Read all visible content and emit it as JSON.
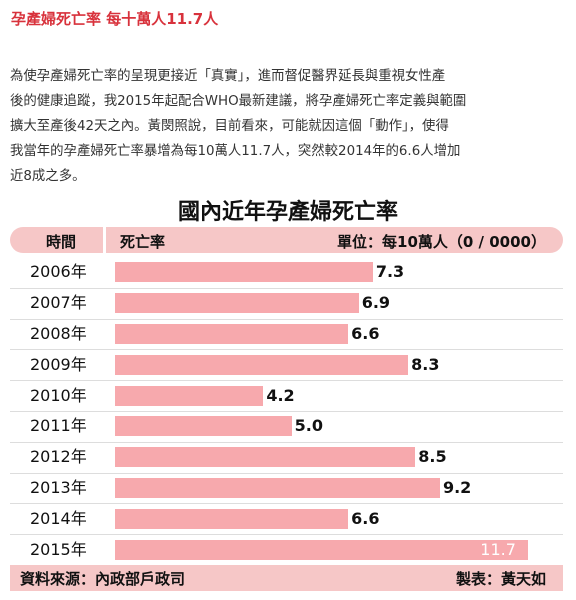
{
  "article": {
    "headline": "孕產婦死亡率 每十萬人11.7人",
    "paragraph_lines": [
      "為使孕產婦死亡率的呈現更接近「真實」，進而督促醫界延長與重視女性產",
      "後的健康追蹤，我2015年起配合WHO最新建議，將孕產婦死亡率定義與範圍",
      "擴大至產後42天之內。黃閔照說，目前看來，可能就因這個「動作」，使得",
      "我當年的孕產婦死亡率暴增為每10萬人11.7人，突然較2014年的6.6人增加",
      "近8成之多。"
    ]
  },
  "chart_data": {
    "type": "bar",
    "orientation": "horizontal",
    "title": "國內近年孕產婦死亡率",
    "column_headers": {
      "time": "時間",
      "value": "死亡率",
      "unit": "單位：每10萬人（0 / 0000）"
    },
    "categories": [
      "2006年",
      "2007年",
      "2008年",
      "2009年",
      "2010年",
      "2011年",
      "2012年",
      "2013年",
      "2014年",
      "2015年"
    ],
    "values": [
      7.3,
      6.9,
      6.6,
      8.3,
      4.2,
      5.0,
      8.5,
      9.2,
      6.6,
      11.7
    ],
    "value_labels": [
      "7.3",
      "6.9",
      "6.6",
      "8.3",
      "4.2",
      "5.0",
      "8.5",
      "9.2",
      "6.6",
      "11.7"
    ],
    "xlim": [
      0,
      12.4
    ],
    "bar_color": "#f7a9ad",
    "header_color": "#f6c7c7",
    "footer": {
      "source": "資料來源：內政部戶政司",
      "maker": "製表：黃天如"
    }
  }
}
